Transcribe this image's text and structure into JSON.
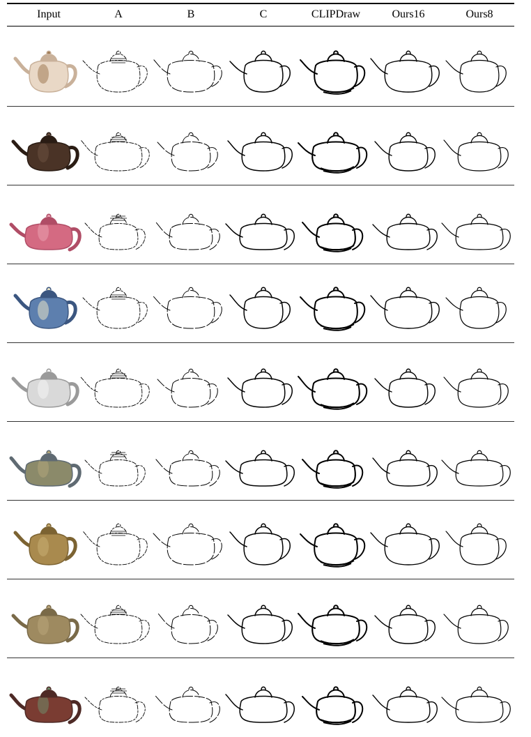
{
  "table": {
    "columns": [
      {
        "key": "input",
        "label": "Input"
      },
      {
        "key": "a",
        "label": "A"
      },
      {
        "key": "b",
        "label": "B"
      },
      {
        "key": "c",
        "label": "C"
      },
      {
        "key": "clipdraw",
        "label": "CLIPDraw"
      },
      {
        "key": "ours16",
        "label": "Ours16"
      },
      {
        "key": "ours8",
        "label": "Ours8"
      }
    ],
    "rows": [
      {
        "photo": {
          "body": "#e9d8c6",
          "shade": "#c9b19a",
          "accent": "#a07c55"
        }
      },
      {
        "photo": {
          "body": "#4a3326",
          "shade": "#2a1c14",
          "accent": "#6b5040"
        }
      },
      {
        "photo": {
          "body": "#d46a82",
          "shade": "#b04d66",
          "accent": "#e9a0b0"
        }
      },
      {
        "photo": {
          "body": "#5d7fae",
          "shade": "#3b5680",
          "accent": "#e8e3c8"
        }
      },
      {
        "photo": {
          "body": "#d9d9d9",
          "shade": "#9a9a9a",
          "accent": "#f4f4f4"
        }
      },
      {
        "photo": {
          "body": "#8b8a6a",
          "shade": "#5f6a72",
          "accent": "#b3a67a"
        }
      },
      {
        "photo": {
          "body": "#a98a4e",
          "shade": "#7c6332",
          "accent": "#c9ae72"
        }
      },
      {
        "photo": {
          "body": "#9e8a60",
          "shade": "#7a6a48",
          "accent": "#b9a57a"
        }
      },
      {
        "photo": {
          "body": "#7a3c32",
          "shade": "#4e2a26",
          "accent": "#6f8a6a"
        }
      }
    ]
  }
}
